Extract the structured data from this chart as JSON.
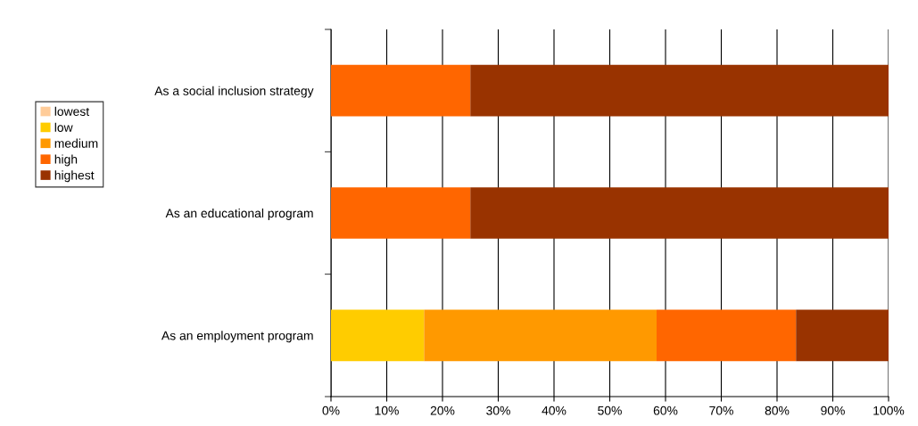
{
  "chart_data": {
    "type": "bar",
    "orientation": "horizontal",
    "stacked": true,
    "categories": [
      "As a social inclusion strategy",
      "As an educational program",
      "As an employment program"
    ],
    "series": [
      {
        "name": "lowest",
        "color": "#ffcc99",
        "values": [
          0,
          0,
          0
        ]
      },
      {
        "name": "low",
        "color": "#ffcc00",
        "values": [
          0,
          0,
          16.7
        ]
      },
      {
        "name": "medium",
        "color": "#ff9900",
        "values": [
          0,
          0,
          41.7
        ]
      },
      {
        "name": "high",
        "color": "#ff6600",
        "values": [
          25,
          25,
          25
        ]
      },
      {
        "name": "highest",
        "color": "#993300",
        "values": [
          75,
          75,
          16.6
        ]
      }
    ],
    "xlim": [
      0,
      100
    ],
    "xticks": [
      {
        "value": 0,
        "label": "0%"
      },
      {
        "value": 10,
        "label": "10%"
      },
      {
        "value": 20,
        "label": "20%"
      },
      {
        "value": 30,
        "label": "30%"
      },
      {
        "value": 40,
        "label": "40%"
      },
      {
        "value": 50,
        "label": "50%"
      },
      {
        "value": 60,
        "label": "60%"
      },
      {
        "value": 70,
        "label": "70%"
      },
      {
        "value": 80,
        "label": "80%"
      },
      {
        "value": 90,
        "label": "90%"
      },
      {
        "value": 100,
        "label": "100%"
      }
    ],
    "grid": "x",
    "legend": "left"
  }
}
